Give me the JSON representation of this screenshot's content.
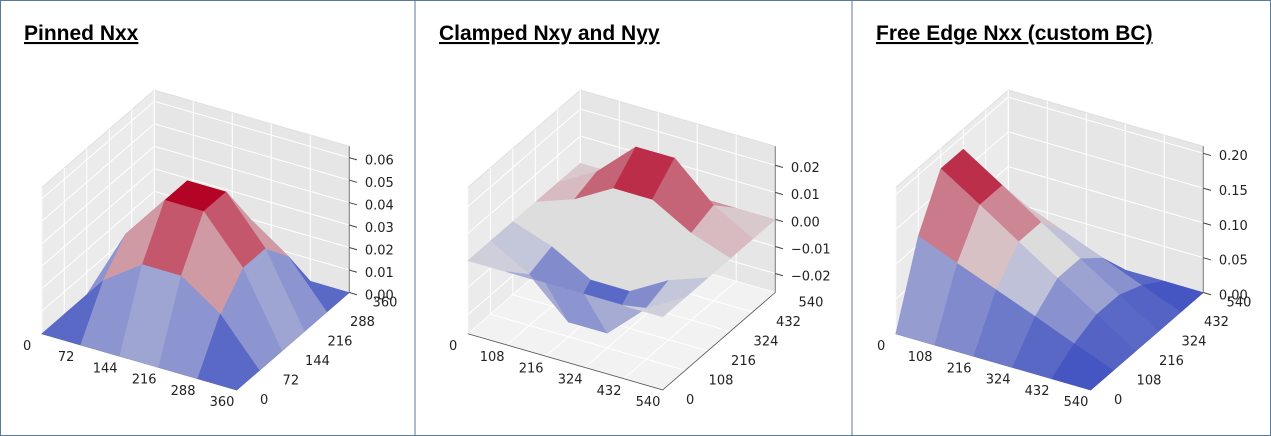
{
  "chart_data": [
    {
      "type": "surface3d",
      "title": "Pinned Nxx",
      "x": [
        0,
        72,
        144,
        216,
        288,
        360
      ],
      "y": [
        0,
        72,
        144,
        216,
        288,
        360
      ],
      "z": [
        [
          0,
          0,
          0,
          0,
          0,
          0
        ],
        [
          0,
          0.02,
          0.032,
          0.032,
          0.02,
          0
        ],
        [
          0,
          0.032,
          0.052,
          0.052,
          0.032,
          0
        ],
        [
          0,
          0.032,
          0.052,
          0.052,
          0.032,
          0
        ],
        [
          0,
          0.02,
          0.032,
          0.032,
          0.02,
          0
        ],
        [
          0,
          0,
          0,
          0,
          0,
          0
        ]
      ],
      "xlim": [
        0,
        360
      ],
      "ylim": [
        0,
        360
      ],
      "zlim": [
        0,
        0.065
      ],
      "xticks": [
        0,
        72,
        144,
        216,
        288,
        360
      ],
      "yticks": [
        0,
        72,
        144,
        216,
        288,
        360
      ],
      "zticks": [
        {
          "value": 0,
          "label": "0.00"
        },
        0.01,
        0.02,
        0.03,
        0.04,
        0.05,
        0.06
      ]
    },
    {
      "type": "surface3d",
      "title": "Clamped  Nxy and Nyy",
      "x": [
        0,
        108,
        216,
        324,
        432,
        540
      ],
      "y": [
        0,
        108,
        216,
        324,
        432,
        540
      ],
      "z": [
        [
          0,
          0,
          0,
          0,
          0,
          0
        ],
        [
          0,
          -0.0082,
          -0.0051,
          0.0051,
          0.0082,
          0
        ],
        [
          0,
          -0.0215,
          -0.0133,
          0.0133,
          0.0215,
          0
        ],
        [
          0,
          -0.0215,
          -0.0133,
          0.0133,
          0.0215,
          0
        ],
        [
          0,
          -0.0082,
          -0.0051,
          0.0051,
          0.0082,
          0
        ],
        [
          0,
          0,
          0,
          0,
          0,
          0
        ]
      ],
      "xlim": [
        0,
        540
      ],
      "ylim": [
        0,
        540
      ],
      "zlim": [
        -0.027,
        0.027
      ],
      "xticks": [
        0,
        108,
        216,
        324,
        432,
        540
      ],
      "yticks": [
        0,
        108,
        216,
        324,
        432,
        540
      ],
      "zticks": [
        {
          "value": -0.02,
          "label": "−0.02"
        },
        {
          "value": -0.01,
          "label": "−0.01"
        },
        {
          "value": 0,
          "label": "0.00"
        },
        0.01,
        0.02
      ]
    },
    {
      "type": "surface3d",
      "title": "Free Edge Nxx  (custom BC)",
      "x": [
        0,
        108,
        216,
        324,
        432,
        540
      ],
      "y": [
        0,
        108,
        216,
        324,
        432,
        540
      ],
      "z": [
        [
          0,
          0.112,
          0.181,
          0.181,
          0.112,
          0
        ],
        [
          0,
          0.089,
          0.145,
          0.145,
          0.089,
          0
        ],
        [
          0,
          0.067,
          0.108,
          0.108,
          0.067,
          0
        ],
        [
          0,
          0.045,
          0.072,
          0.072,
          0.045,
          0
        ],
        [
          0,
          0.022,
          0.036,
          0.036,
          0.022,
          0
        ],
        [
          0,
          0,
          0,
          0,
          0,
          0
        ]
      ],
      "xlim": [
        0,
        540
      ],
      "ylim": [
        0,
        540
      ],
      "zlim": [
        0,
        0.21
      ],
      "xticks": [
        0,
        108,
        216,
        324,
        432,
        540
      ],
      "yticks": [
        0,
        108,
        216,
        324,
        432,
        540
      ],
      "zticks": [
        {
          "value": 0,
          "label": "0.00"
        },
        0.05,
        {
          "value": 0.1,
          "label": "0.10"
        },
        0.15,
        {
          "value": 0.2,
          "label": "0.20"
        }
      ]
    }
  ]
}
